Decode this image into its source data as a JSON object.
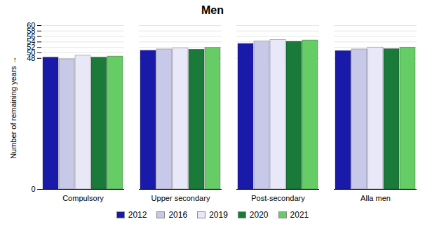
{
  "chart_data": {
    "type": "bar",
    "title": "Men",
    "ylabel": "Number of remaining years",
    "categories": [
      "Compulsory",
      "Upper secondary",
      "Post-secondary",
      "Alla men"
    ],
    "series": [
      {
        "name": "2012",
        "color": "#1a1aaa",
        "values": [
          48.3,
          50.8,
          53.3,
          50.7
        ]
      },
      {
        "name": "2016",
        "color": "#c8c8e8",
        "values": [
          47.7,
          51.3,
          54.2,
          51.3
        ]
      },
      {
        "name": "2019",
        "color": "#e8e8f8",
        "values": [
          49.0,
          51.7,
          54.8,
          52.0
        ]
      },
      {
        "name": "2020",
        "color": "#1a7a3a",
        "values": [
          48.3,
          51.2,
          54.1,
          51.4
        ]
      },
      {
        "name": "2021",
        "color": "#66cc66",
        "values": [
          48.7,
          51.9,
          54.6,
          52.0
        ]
      }
    ],
    "ylim": [
      0,
      60
    ],
    "yticks": [
      0,
      48,
      50,
      52,
      54,
      56,
      58,
      60
    ],
    "grid": true,
    "legend": "bottom"
  }
}
